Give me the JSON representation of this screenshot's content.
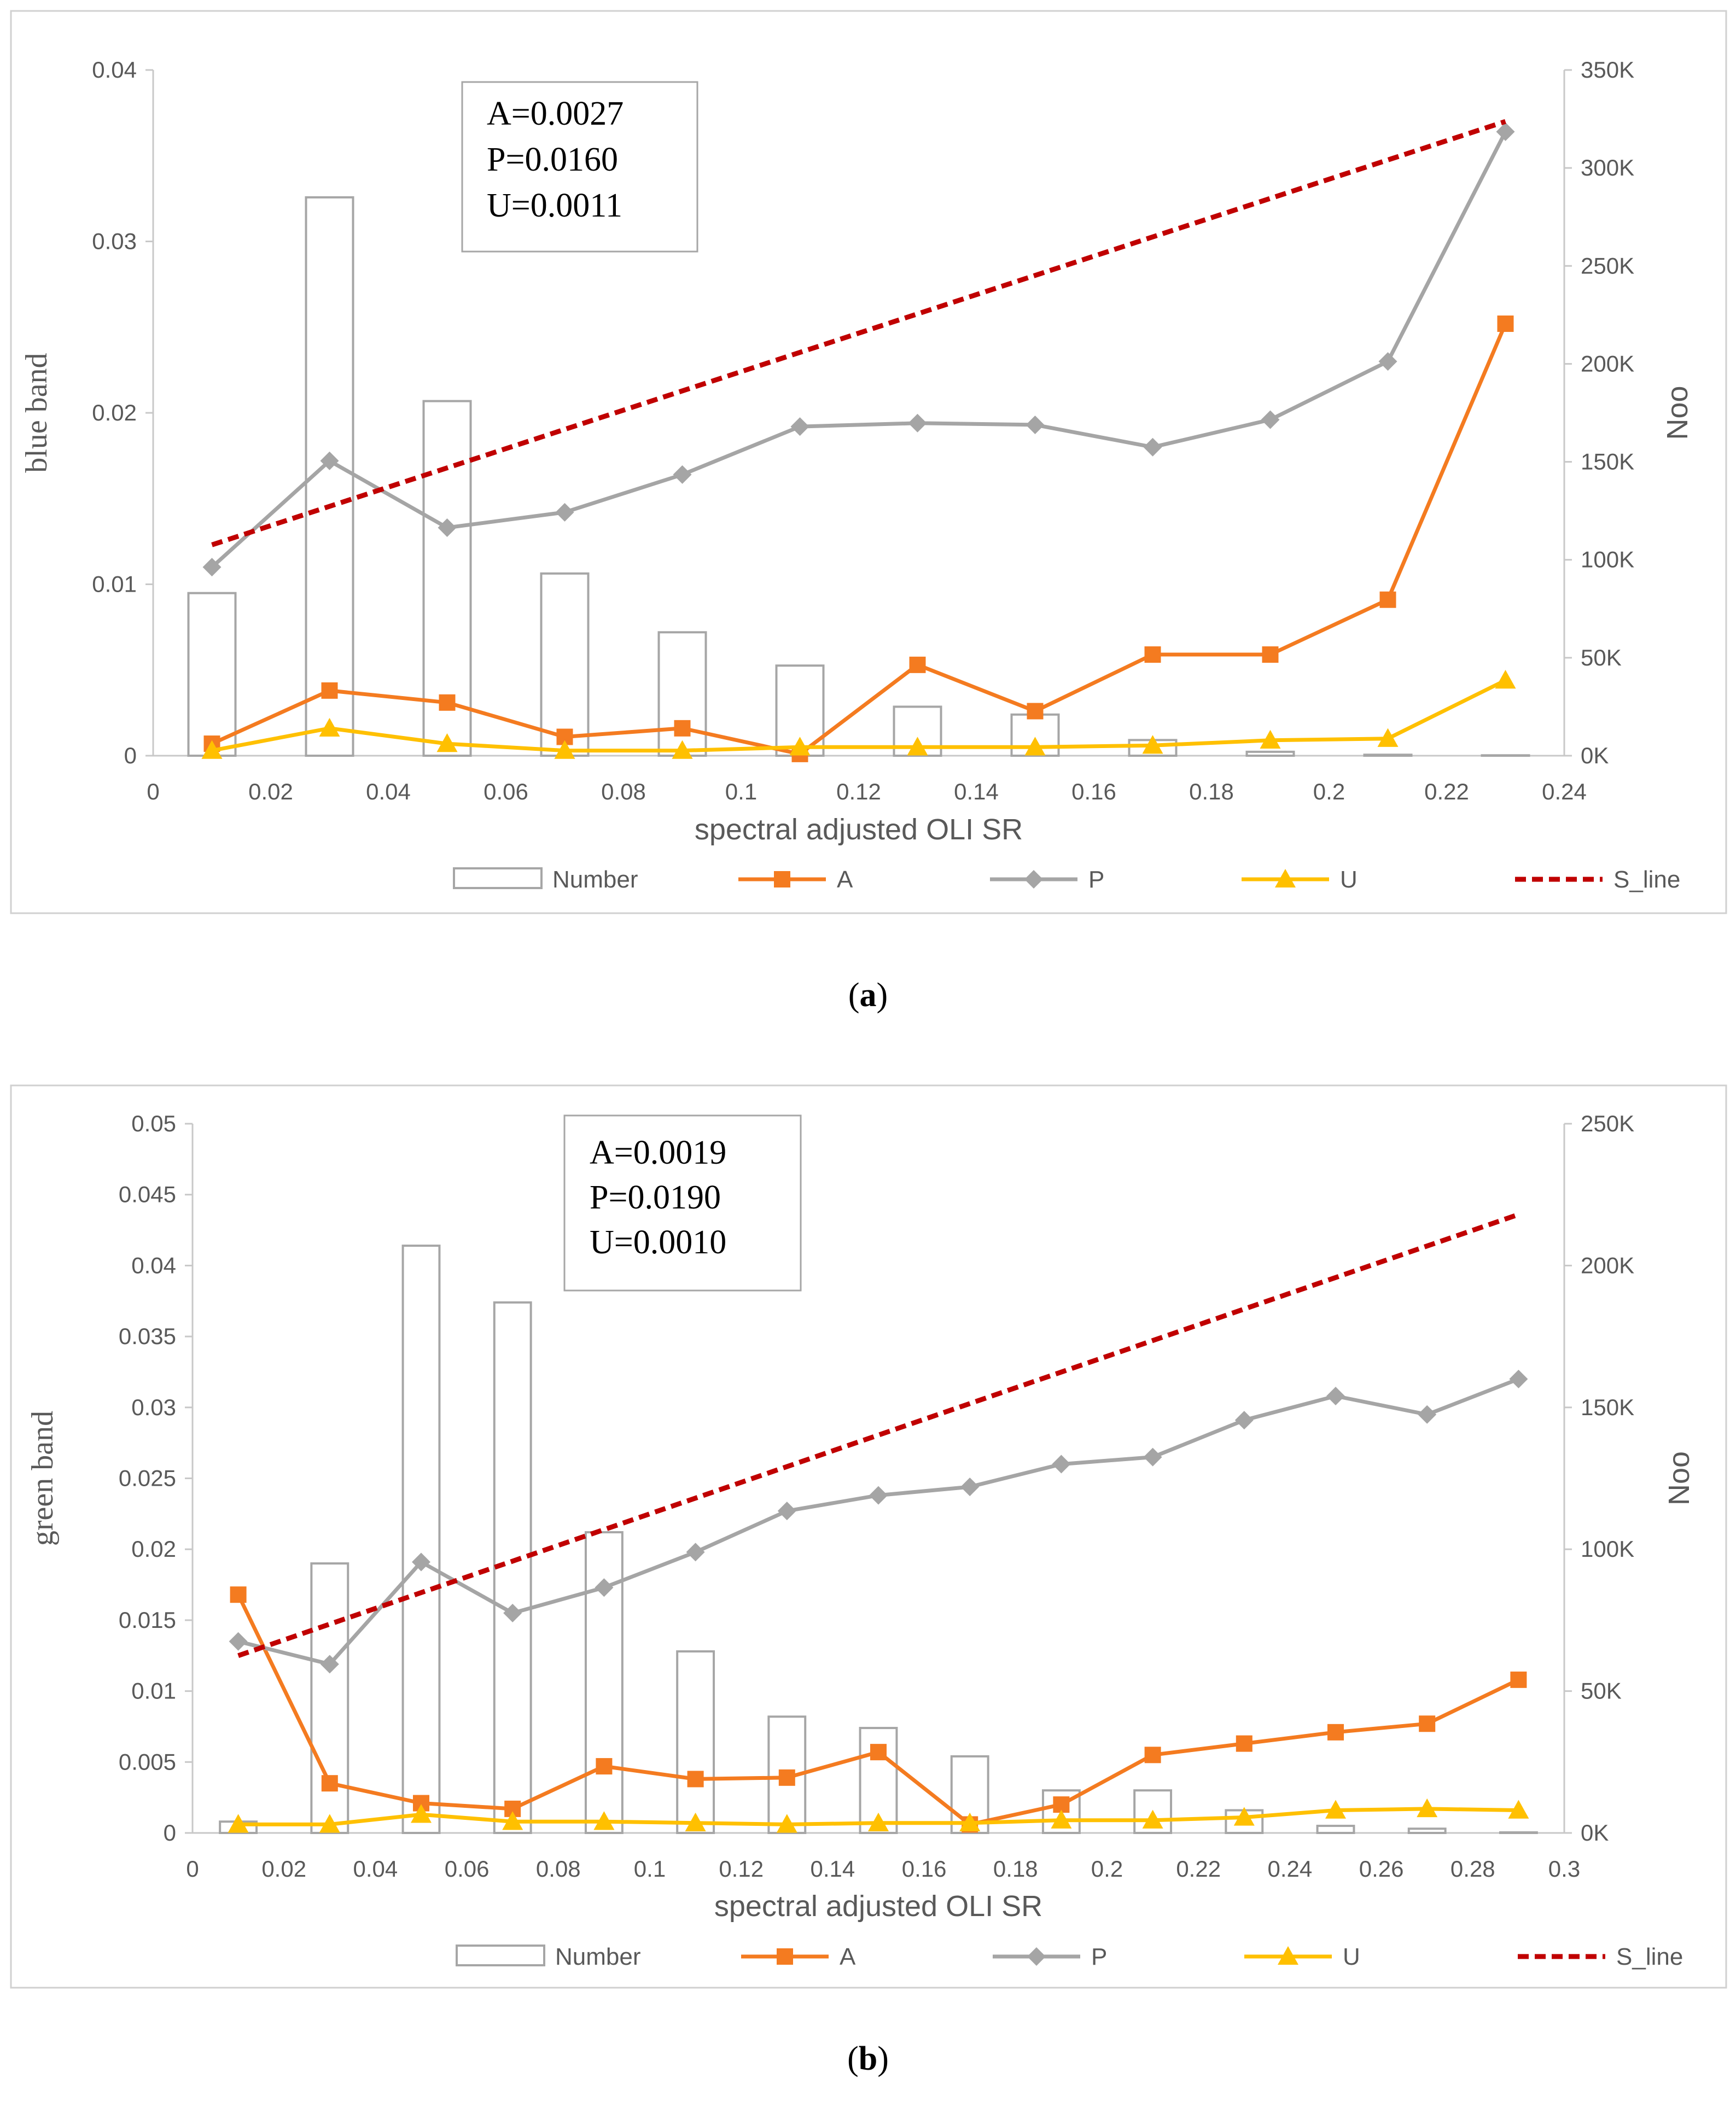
{
  "series_colors": {
    "Number": "#a6a6a6",
    "A": "#f47b20",
    "P": "#a5a5a5",
    "U": "#ffc000",
    "S_line": "#c00000"
  },
  "legend": [
    "Number",
    "A",
    "P",
    "U",
    "S_line"
  ],
  "chart_data": [
    {
      "type": "bar",
      "panel_label": "a",
      "xlabel": "spectral adjusted OLI SR",
      "ylabel": "blue band",
      "y2label": "Noo",
      "xlim": [
        0,
        0.24
      ],
      "ylim": [
        0,
        0.04
      ],
      "y2lim": [
        0,
        350000
      ],
      "xticks": [
        "0",
        "0.02",
        "0.04",
        "0.06",
        "0.08",
        "0.1",
        "0.12",
        "0.14",
        "0.16",
        "0.18",
        "0.2",
        "0.22",
        "0.24"
      ],
      "yticks": [
        "0",
        "0.01",
        "0.02",
        "0.03",
        "0.04"
      ],
      "y2ticks": [
        "0K",
        "50K",
        "100K",
        "150K",
        "200K",
        "250K",
        "300K",
        "350K"
      ],
      "stats": [
        "A=0.0027",
        "P=0.0160",
        "U=0.0011"
      ],
      "x": [
        0.01,
        0.03,
        0.05,
        0.07,
        0.09,
        0.11,
        0.13,
        0.15,
        0.17,
        0.19,
        0.21,
        0.23
      ],
      "series": [
        {
          "name": "Number",
          "axis": "right",
          "values": [
            83000,
            285000,
            181000,
            93000,
            63000,
            46000,
            25000,
            21000,
            8000,
            2000,
            500,
            200
          ]
        },
        {
          "name": "A",
          "axis": "left",
          "values": [
            0.0007,
            0.0038,
            0.0031,
            0.0011,
            0.0016,
            0.0001,
            0.0053,
            0.0026,
            0.0059,
            0.0059,
            0.0091,
            0.0252
          ]
        },
        {
          "name": "P",
          "axis": "left",
          "values": [
            0.011,
            0.0172,
            0.0133,
            0.0142,
            0.0164,
            0.0192,
            0.0194,
            0.0193,
            0.018,
            0.0196,
            0.023,
            0.0364
          ]
        },
        {
          "name": "U",
          "axis": "left",
          "values": [
            0.0003,
            0.0016,
            0.0007,
            0.0003,
            0.0003,
            0.0005,
            0.0005,
            0.0005,
            0.0006,
            0.0009,
            0.001,
            0.0044
          ]
        },
        {
          "name": "S_line",
          "axis": "left",
          "x": [
            0.01,
            0.23
          ],
          "values": [
            0.0123,
            0.037
          ]
        }
      ]
    },
    {
      "type": "bar",
      "panel_label": "b",
      "xlabel": "spectral adjusted OLI SR",
      "ylabel": "green band",
      "y2label": "Noo",
      "xlim": [
        0,
        0.3
      ],
      "ylim": [
        0,
        0.05
      ],
      "y2lim": [
        0,
        250000
      ],
      "xticks": [
        "0",
        "0.02",
        "0.04",
        "0.06",
        "0.08",
        "0.1",
        "0.12",
        "0.14",
        "0.16",
        "0.18",
        "0.2",
        "0.22",
        "0.24",
        "0.26",
        "0.28",
        "0.3"
      ],
      "yticks": [
        "0",
        "0.005",
        "0.01",
        "0.015",
        "0.02",
        "0.025",
        "0.03",
        "0.035",
        "0.04",
        "0.045",
        "0.05"
      ],
      "y2ticks": [
        "0K",
        "50K",
        "100K",
        "150K",
        "200K",
        "250K"
      ],
      "stats": [
        "A=0.0019",
        "P=0.0190",
        "U=0.0010"
      ],
      "x": [
        0.01,
        0.03,
        0.05,
        0.07,
        0.09,
        0.11,
        0.13,
        0.15,
        0.17,
        0.19,
        0.21,
        0.23,
        0.25,
        0.27,
        0.29
      ],
      "series": [
        {
          "name": "Number",
          "axis": "right",
          "values": [
            4000,
            95000,
            207000,
            187000,
            106000,
            64000,
            41000,
            37000,
            27000,
            15000,
            15000,
            8000,
            2500,
            1500,
            200
          ]
        },
        {
          "name": "A",
          "axis": "left",
          "values": [
            0.0168,
            0.0035,
            0.0021,
            0.0017,
            0.0047,
            0.0038,
            0.0039,
            0.0057,
            0.0006,
            0.002,
            0.0055,
            0.0063,
            0.0071,
            0.0077,
            0.0108
          ]
        },
        {
          "name": "P",
          "axis": "left",
          "values": [
            0.0135,
            0.0119,
            0.0191,
            0.0155,
            0.0173,
            0.0198,
            0.0227,
            0.0238,
            0.0244,
            0.026,
            0.0265,
            0.0291,
            0.0308,
            0.0295,
            0.032
          ]
        },
        {
          "name": "U",
          "axis": "left",
          "values": [
            0.0006,
            0.0006,
            0.0013,
            0.0008,
            0.0008,
            0.0007,
            0.0006,
            0.0007,
            0.0007,
            0.0009,
            0.0009,
            0.0011,
            0.0016,
            0.0017,
            0.0016
          ]
        },
        {
          "name": "S_line",
          "axis": "left",
          "x": [
            0.01,
            0.29
          ],
          "values": [
            0.0125,
            0.0436
          ]
        }
      ]
    }
  ]
}
